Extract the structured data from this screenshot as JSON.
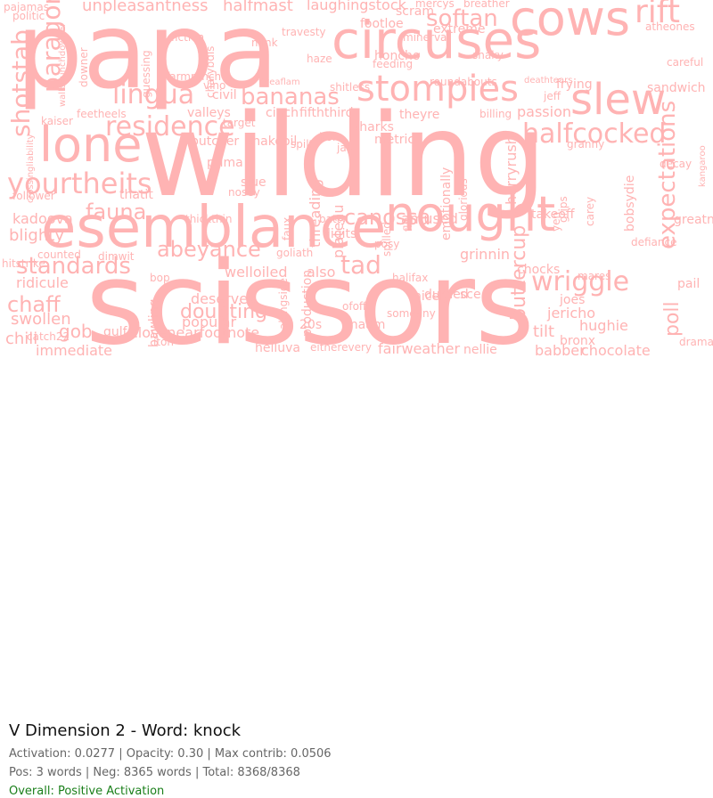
{
  "word_color": "#ffb3b3",
  "info": {
    "title": "V Dimension 2 - Word: knock",
    "line1": "Activation: 0.0277 | Opacity: 0.30 | Max contrib: 0.0506",
    "line2": "Pos: 3 words | Neg: 8365 words | Total: 8368/8368",
    "line3": "Overall: Positive Activation",
    "line3_color": "#1a7f1a"
  },
  "words": [
    {
      "t": "papa"
    },
    {
      "t": "wilding"
    },
    {
      "t": "scissors"
    },
    {
      "t": "circuses"
    },
    {
      "t": "esemblance"
    },
    {
      "t": "nought"
    },
    {
      "t": "cows"
    },
    {
      "t": "lone"
    },
    {
      "t": "stompies"
    },
    {
      "t": "slew"
    },
    {
      "t": "rift"
    },
    {
      "t": "softan"
    },
    {
      "t": "yourtheits"
    },
    {
      "t": "residence"
    },
    {
      "t": "lingua"
    },
    {
      "t": "bananas"
    },
    {
      "t": "halfcocked"
    },
    {
      "t": "paragon"
    },
    {
      "t": "shotstab"
    },
    {
      "t": "fauna"
    },
    {
      "t": "standards"
    },
    {
      "t": "canossa"
    },
    {
      "t": "wriggle"
    },
    {
      "t": "tad"
    },
    {
      "t": "abeyance"
    },
    {
      "t": "chaff"
    },
    {
      "t": "gob"
    },
    {
      "t": "doubting"
    },
    {
      "t": "expectations"
    },
    {
      "t": "poll"
    },
    {
      "t": "buttercup"
    },
    {
      "t": "fairweather"
    },
    {
      "t": "unpleasantness"
    },
    {
      "t": "laughingstock"
    },
    {
      "t": "halfmast"
    },
    {
      "t": "footloe"
    },
    {
      "t": "scram"
    },
    {
      "t": "honcho"
    },
    {
      "t": "amused"
    },
    {
      "t": "kadoova"
    },
    {
      "t": "blighty"
    },
    {
      "t": "ridicule"
    },
    {
      "t": "swollen"
    },
    {
      "t": "chili"
    },
    {
      "t": "immediate"
    },
    {
      "t": "deserves"
    },
    {
      "t": "popular"
    },
    {
      "t": "welloiled"
    },
    {
      "t": "grinnin"
    },
    {
      "t": "nellie"
    },
    {
      "t": "babber"
    },
    {
      "t": "chocolate"
    },
    {
      "t": "jericho"
    },
    {
      "t": "hughie"
    },
    {
      "t": "tilt"
    },
    {
      "t": "bronx"
    },
    {
      "t": "pail"
    },
    {
      "t": "drama"
    },
    {
      "t": "atheones"
    },
    {
      "t": "sandwich"
    },
    {
      "t": "frying"
    },
    {
      "t": "passion"
    },
    {
      "t": "billing"
    },
    {
      "t": "threading"
    },
    {
      "t": "plateau"
    },
    {
      "t": "sharks"
    },
    {
      "t": "metric"
    },
    {
      "t": "theyre"
    },
    {
      "t": "fifththird"
    },
    {
      "t": "cinch"
    },
    {
      "t": "snakeoil"
    },
    {
      "t": "valleys"
    },
    {
      "t": "butcher"
    },
    {
      "t": "thatit"
    },
    {
      "t": "counted"
    },
    {
      "t": "catch22"
    },
    {
      "t": "closenearfootnote"
    },
    {
      "t": "helluva"
    },
    {
      "t": "maam"
    },
    {
      "t": "production"
    },
    {
      "t": "goliath"
    },
    {
      "t": "also"
    },
    {
      "t": "digits"
    },
    {
      "t": "bop"
    },
    {
      "t": "bawling"
    },
    {
      "t": "mercys"
    },
    {
      "t": "breather"
    },
    {
      "t": "politic"
    },
    {
      "t": "pajamas"
    },
    {
      "t": "extreme"
    },
    {
      "t": "snaky"
    },
    {
      "t": "careful"
    },
    {
      "t": "decay"
    },
    {
      "t": "greatness"
    },
    {
      "t": "kangaroo"
    },
    {
      "t": "defiance"
    },
    {
      "t": "mares"
    },
    {
      "t": "joes"
    },
    {
      "t": "chocks"
    },
    {
      "t": "takeoff"
    },
    {
      "t": "granny"
    },
    {
      "t": "bobsydie"
    },
    {
      "t": "hurryrush"
    },
    {
      "t": "glorious"
    },
    {
      "t": "emotionally"
    },
    {
      "t": "spilled"
    },
    {
      "t": "flit"
    },
    {
      "t": "faux"
    },
    {
      "t": "slue"
    },
    {
      "t": "nosey"
    },
    {
      "t": "prima"
    },
    {
      "t": "thickthin"
    },
    {
      "t": "batty"
    },
    {
      "t": "posy"
    },
    {
      "t": "durned"
    },
    {
      "t": "sce"
    },
    {
      "t": "nicely"
    },
    {
      "t": "someany"
    },
    {
      "t": "eitherevery"
    },
    {
      "t": "20s"
    },
    {
      "t": "alongside"
    },
    {
      "t": "iton"
    },
    {
      "t": "follower"
    },
    {
      "t": "hitstrike"
    },
    {
      "t": "kaiser"
    },
    {
      "t": "feetheels"
    },
    {
      "t": "guessing"
    },
    {
      "t": "fiction"
    },
    {
      "t": "downer"
    },
    {
      "t": "wallopunchdowner"
    },
    {
      "t": "mink"
    },
    {
      "t": "travesty"
    },
    {
      "t": "haze"
    },
    {
      "t": "fiveaflam"
    },
    {
      "t": "shitless"
    },
    {
      "t": "roundabouts"
    },
    {
      "t": "deathtears"
    },
    {
      "t": "jeff"
    },
    {
      "t": "civil"
    },
    {
      "t": "vino"
    },
    {
      "t": "target"
    },
    {
      "t": "spilt"
    },
    {
      "t": "hol"
    },
    {
      "t": "jag"
    },
    {
      "t": "crossingliability"
    },
    {
      "t": "gulf"
    },
    {
      "t": "dimwit"
    },
    {
      "t": "yen"
    },
    {
      "t": "grips"
    },
    {
      "t": "carey"
    },
    {
      "t": "halifax"
    },
    {
      "t": "minerva"
    },
    {
      "t": "charybdis"
    },
    {
      "t": "farmranch"
    },
    {
      "t": "feeding"
    },
    {
      "t": "ofoff"
    }
  ]
}
